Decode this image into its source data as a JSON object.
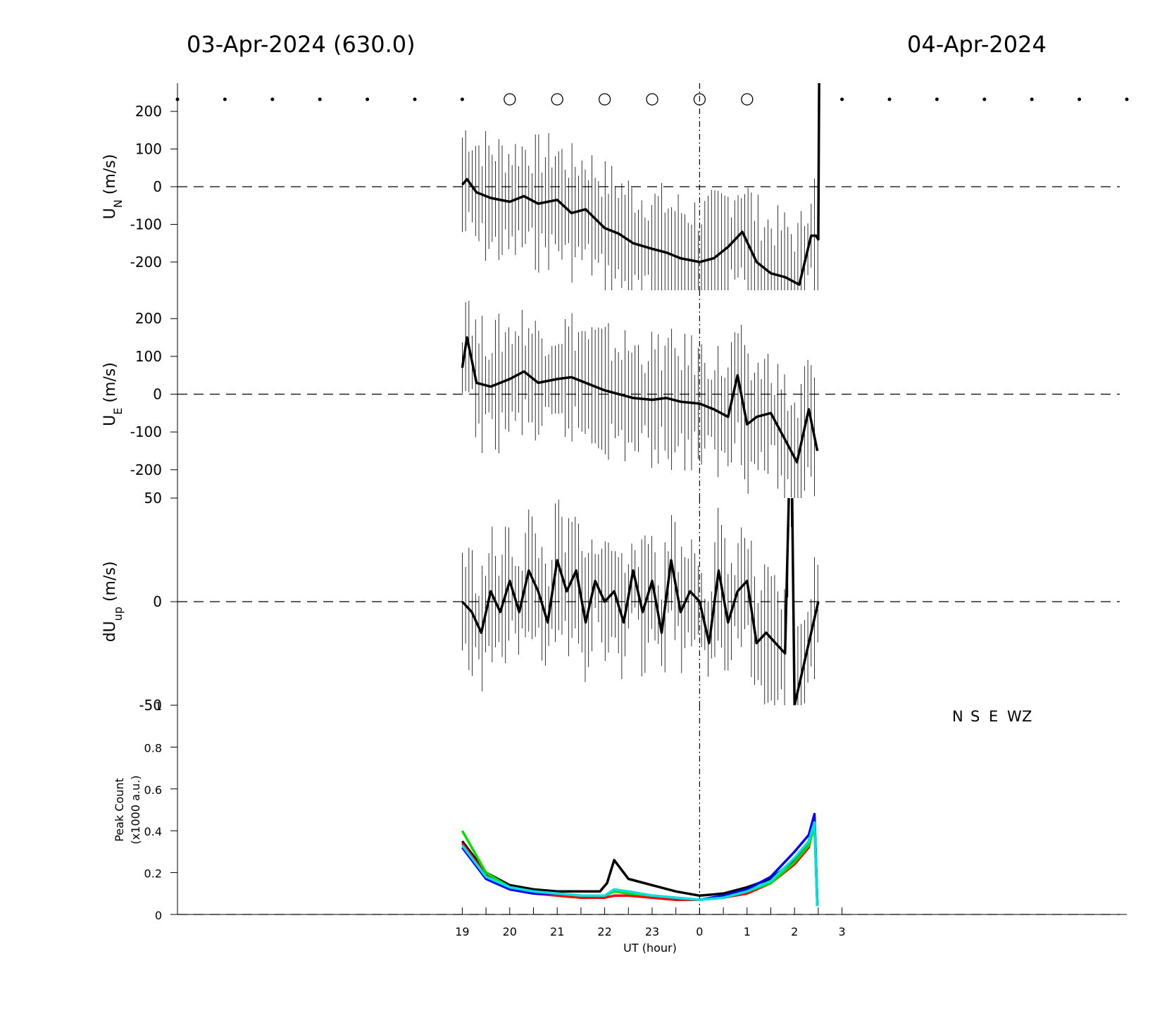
{
  "header": {
    "left_title": "03-Apr-2024 (630.0)",
    "right_title": "04-Apr-2024"
  },
  "colors": {
    "N": "#000000",
    "S": "#ff0000",
    "E": "#0000ff",
    "W": "#00e000",
    "Z": "#00e0e0"
  },
  "chart_data": [
    {
      "type": "line",
      "panel": "UN",
      "ylabel_main": "U",
      "ylabel_sub": "N",
      "ylabel_unit": " (m/s)",
      "yticks": [
        "200",
        "100",
        "0",
        "-100",
        "-200"
      ],
      "ylim": [
        -275,
        275
      ],
      "xlim": [
        13,
        33
      ],
      "markers": {
        "dots_x": [
          13,
          14,
          15,
          16,
          17,
          18,
          19,
          27,
          28,
          29,
          30,
          31,
          32,
          33
        ],
        "circles_x": [
          20,
          21,
          22,
          23,
          24,
          25
        ],
        "y": 232
      },
      "series": [
        {
          "x": [
            19,
            19.1,
            19.3,
            19.6,
            20,
            20.3,
            20.6,
            21,
            21.3,
            21.6,
            22,
            22.3,
            22.6,
            23,
            23.3,
            23.6,
            24,
            24.3,
            24.6,
            24.9,
            25.2,
            25.5,
            25.8,
            26.1,
            26.35,
            26.45,
            26.5,
            26.52
          ],
          "y": [
            5,
            20,
            -15,
            -30,
            -40,
            -25,
            -45,
            -35,
            -70,
            -60,
            -110,
            -125,
            -150,
            -165,
            -175,
            -190,
            -200,
            -190,
            -160,
            -120,
            -200,
            -230,
            -240,
            -260,
            -130,
            -130,
            -140,
            300
          ]
        }
      ]
    },
    {
      "type": "line",
      "panel": "UE",
      "ylabel_main": "U",
      "ylabel_sub": "E",
      "ylabel_unit": " (m/s)",
      "yticks": [
        "200",
        "100",
        "0",
        "-100",
        "-200"
      ],
      "ylim": [
        -275,
        275
      ],
      "xlim": [
        13,
        33
      ],
      "series": [
        {
          "x": [
            19,
            19.1,
            19.3,
            19.6,
            20,
            20.3,
            20.6,
            21,
            21.3,
            21.6,
            22,
            22.3,
            22.6,
            23,
            23.3,
            23.6,
            24,
            24.3,
            24.6,
            24.8,
            25,
            25.2,
            25.5,
            25.8,
            26.05,
            26.3,
            26.48
          ],
          "y": [
            70,
            150,
            30,
            20,
            40,
            60,
            30,
            40,
            45,
            30,
            10,
            0,
            -10,
            -15,
            -10,
            -20,
            -25,
            -40,
            -60,
            50,
            -80,
            -60,
            -50,
            -120,
            -180,
            -40,
            -150
          ]
        }
      ]
    },
    {
      "type": "line",
      "panel": "dUup",
      "ylabel_main": "dU",
      "ylabel_sub": "up",
      "ylabel_unit": " (m/s)",
      "yticks": [
        "50",
        "0",
        "-50"
      ],
      "ylim": [
        -50,
        50
      ],
      "xlim": [
        13,
        33
      ],
      "series": [
        {
          "x": [
            19,
            19.2,
            19.4,
            19.6,
            19.8,
            20,
            20.2,
            20.4,
            20.6,
            20.8,
            21,
            21.2,
            21.4,
            21.6,
            21.8,
            22,
            22.2,
            22.4,
            22.6,
            22.8,
            23,
            23.2,
            23.4,
            23.6,
            23.8,
            24,
            24.2,
            24.4,
            24.6,
            24.8,
            25,
            25.2,
            25.4,
            25.6,
            25.8,
            25.9,
            25.95,
            26,
            26.5
          ],
          "y": [
            0,
            -5,
            -15,
            5,
            -5,
            10,
            -5,
            15,
            5,
            -10,
            20,
            5,
            15,
            -10,
            10,
            0,
            5,
            -10,
            15,
            -5,
            10,
            -15,
            20,
            -5,
            5,
            0,
            -20,
            15,
            -10,
            5,
            10,
            -20,
            -15,
            -20,
            -25,
            70,
            50,
            -50,
            0
          ]
        }
      ]
    },
    {
      "type": "line",
      "panel": "peak",
      "ylabel_lines": [
        "Peak Count",
        "(x1000 a.u.)"
      ],
      "yticks": [
        "1",
        "0.8",
        "0.6",
        "0.4",
        "0.2",
        "0"
      ],
      "ylim": [
        0,
        1
      ],
      "xlim": [
        13,
        33
      ],
      "xticks": [
        "19",
        "20",
        "21",
        "22",
        "23",
        "0",
        "1",
        "2",
        "3"
      ],
      "xlabel": "UT (hour)",
      "legend": [
        "N",
        "S",
        "E",
        "W",
        "Z"
      ],
      "series": [
        {
          "name": "N",
          "x": [
            19,
            19.5,
            20,
            20.5,
            21,
            21.5,
            21.9,
            22.05,
            22.2,
            22.5,
            23,
            23.5,
            24,
            24.5,
            25,
            25.5,
            26,
            26.3,
            26.42,
            26.48
          ],
          "y": [
            0.35,
            0.2,
            0.14,
            0.12,
            0.11,
            0.11,
            0.11,
            0.15,
            0.26,
            0.17,
            0.14,
            0.11,
            0.09,
            0.1,
            0.13,
            0.17,
            0.26,
            0.35,
            0.45,
            0.05
          ]
        },
        {
          "name": "S",
          "x": [
            19,
            19.5,
            20,
            20.5,
            21,
            21.5,
            22,
            22.2,
            22.5,
            23,
            23.5,
            24,
            24.5,
            25,
            25.5,
            26,
            26.3,
            26.42,
            26.48
          ],
          "y": [
            0.34,
            0.19,
            0.12,
            0.1,
            0.09,
            0.08,
            0.08,
            0.09,
            0.09,
            0.08,
            0.07,
            0.07,
            0.08,
            0.1,
            0.15,
            0.24,
            0.32,
            0.44,
            0.04
          ]
        },
        {
          "name": "E",
          "x": [
            19,
            19.5,
            20,
            20.5,
            21,
            21.5,
            22,
            22.2,
            22.5,
            23,
            23.5,
            24,
            24.5,
            25,
            25.5,
            26,
            26.3,
            26.42,
            26.48
          ],
          "y": [
            0.32,
            0.17,
            0.12,
            0.1,
            0.1,
            0.09,
            0.09,
            0.11,
            0.11,
            0.09,
            0.08,
            0.07,
            0.09,
            0.12,
            0.18,
            0.3,
            0.38,
            0.48,
            0.04
          ]
        },
        {
          "name": "W",
          "x": [
            19,
            19.5,
            20,
            20.5,
            21,
            21.5,
            22,
            22.2,
            22.5,
            23,
            23.5,
            24,
            24.5,
            25,
            25.5,
            26,
            26.3,
            26.42,
            26.48
          ],
          "y": [
            0.4,
            0.2,
            0.13,
            0.11,
            0.1,
            0.09,
            0.09,
            0.11,
            0.1,
            0.09,
            0.08,
            0.07,
            0.08,
            0.11,
            0.15,
            0.25,
            0.33,
            0.42,
            0.04
          ]
        },
        {
          "name": "Z",
          "x": [
            19,
            19.5,
            20,
            20.5,
            21,
            21.5,
            22,
            22.2,
            22.5,
            23,
            23.5,
            24,
            24.5,
            25,
            25.5,
            26,
            26.3,
            26.42,
            26.48
          ],
          "y": [
            0.33,
            0.18,
            0.13,
            0.11,
            0.1,
            0.09,
            0.09,
            0.12,
            0.11,
            0.09,
            0.08,
            0.07,
            0.08,
            0.11,
            0.16,
            0.27,
            0.35,
            0.44,
            0.04
          ]
        }
      ]
    }
  ]
}
